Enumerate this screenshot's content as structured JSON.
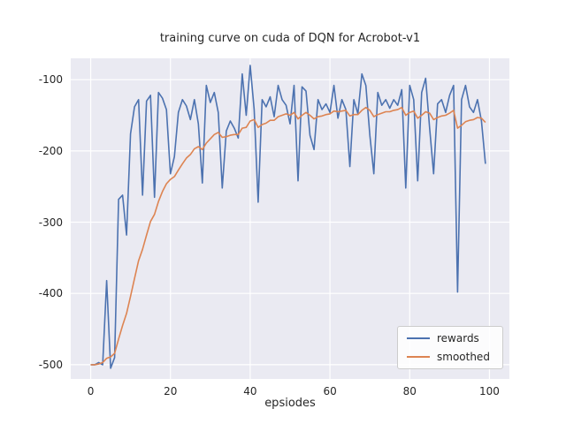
{
  "window": {
    "title": "training curve on cuda of DQN for Acrobot-v1"
  },
  "colors": {
    "figure_bg": "#ffffff",
    "axes_bg": "#eaeaf2",
    "grid": "#ffffff",
    "text": "#262626",
    "rewards_line": "#4c72b0",
    "smoothed_line": "#dd8452",
    "legend_border": "#cccccc"
  },
  "chart_data": {
    "type": "line",
    "title": "training curve on cuda of DQN for Acrobot-v1",
    "xlabel": "epsiodes",
    "ylabel": "",
    "xlim": [
      -5,
      105
    ],
    "ylim": [
      -520,
      -70
    ],
    "xticks": [
      0,
      20,
      40,
      60,
      80,
      100
    ],
    "yticks": [
      -500,
      -400,
      -300,
      -200,
      -100
    ],
    "grid": true,
    "legend_position": "lower right",
    "x_range": [
      0,
      99
    ],
    "series": [
      {
        "name": "rewards",
        "color": "#4c72b0",
        "values": [
          -500,
          -500,
          -497,
          -500,
          -382,
          -505,
          -490,
          -268,
          -262,
          -318,
          -176,
          -138,
          -128,
          -262,
          -130,
          -122,
          -265,
          -118,
          -126,
          -142,
          -232,
          -208,
          -146,
          -128,
          -137,
          -156,
          -128,
          -162,
          -245,
          -108,
          -132,
          -118,
          -146,
          -252,
          -172,
          -158,
          -168,
          -182,
          -92,
          -150,
          -80,
          -142,
          -272,
          -128,
          -138,
          -124,
          -152,
          -108,
          -128,
          -136,
          -162,
          -108,
          -242,
          -110,
          -116,
          -178,
          -198,
          -128,
          -142,
          -134,
          -146,
          -108,
          -154,
          -128,
          -142,
          -222,
          -128,
          -148,
          -92,
          -108,
          -178,
          -232,
          -118,
          -136,
          -128,
          -140,
          -128,
          -136,
          -114,
          -252,
          -108,
          -128,
          -242,
          -118,
          -98,
          -168,
          -232,
          -134,
          -128,
          -146,
          -122,
          -108,
          -398,
          -128,
          -108,
          -138,
          -146,
          -128,
          -158,
          -218
        ]
      },
      {
        "name": "smoothed",
        "color": "#dd8452",
        "values": [
          -500,
          -500,
          -499,
          -497,
          -491,
          -489,
          -484,
          -464,
          -445,
          -428,
          -404,
          -379,
          -354,
          -338,
          -318,
          -299,
          -289,
          -271,
          -257,
          -246,
          -240,
          -236,
          -227,
          -218,
          -210,
          -205,
          -197,
          -194,
          -198,
          -189,
          -183,
          -177,
          -174,
          -181,
          -180,
          -178,
          -177,
          -177,
          -168,
          -167,
          -158,
          -156,
          -167,
          -163,
          -161,
          -157,
          -157,
          -152,
          -150,
          -148,
          -150,
          -146,
          -155,
          -150,
          -146,
          -150,
          -155,
          -152,
          -151,
          -149,
          -148,
          -144,
          -145,
          -144,
          -143,
          -151,
          -149,
          -149,
          -143,
          -139,
          -143,
          -152,
          -149,
          -147,
          -145,
          -145,
          -143,
          -142,
          -139,
          -150,
          -146,
          -144,
          -154,
          -150,
          -145,
          -147,
          -156,
          -153,
          -151,
          -150,
          -147,
          -143,
          -168,
          -164,
          -159,
          -157,
          -156,
          -153,
          -154,
          -160
        ]
      }
    ]
  },
  "legend": {
    "items": [
      {
        "label": "rewards"
      },
      {
        "label": "smoothed"
      }
    ]
  }
}
